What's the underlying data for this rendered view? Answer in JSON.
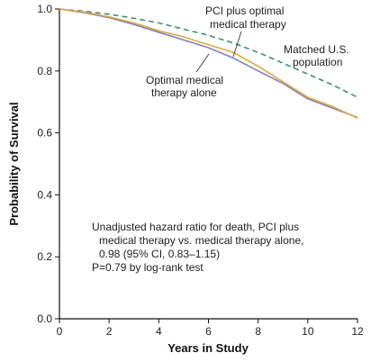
{
  "chart_data": {
    "type": "line",
    "xlabel": "Years in Study",
    "ylabel": "Probability of Survival",
    "xlim": [
      0,
      12
    ],
    "ylim": [
      0.0,
      1.0
    ],
    "x_ticks": [
      "0",
      "2",
      "4",
      "6",
      "8",
      "10",
      "12"
    ],
    "y_ticks": [
      "0.0",
      "0.2",
      "0.4",
      "0.6",
      "0.8",
      "1.0"
    ],
    "grid": false,
    "series": [
      {
        "name": "PCI plus optimal medical therapy",
        "color": "#e3a83a",
        "style": "solid",
        "x": [
          0,
          1,
          2,
          3,
          4,
          5,
          6,
          7,
          8,
          9,
          10,
          11,
          12
        ],
        "y": [
          1.0,
          0.99,
          0.975,
          0.955,
          0.93,
          0.91,
          0.885,
          0.86,
          0.815,
          0.765,
          0.715,
          0.685,
          0.648
        ]
      },
      {
        "name": "Optimal medical therapy alone",
        "color": "#7b82c4",
        "style": "solid",
        "x": [
          0,
          1,
          2,
          3,
          4,
          5,
          6,
          7,
          8,
          9,
          10,
          11,
          12
        ],
        "y": [
          1.0,
          0.988,
          0.972,
          0.95,
          0.925,
          0.9,
          0.875,
          0.842,
          0.8,
          0.76,
          0.71,
          0.68,
          0.65
        ]
      },
      {
        "name": "Matched U.S. population",
        "color": "#3f8f7d",
        "style": "dashed",
        "x": [
          0,
          1,
          2,
          3,
          4,
          5,
          6,
          7,
          8,
          9,
          10,
          11,
          12
        ],
        "y": [
          1.0,
          0.993,
          0.983,
          0.97,
          0.955,
          0.935,
          0.915,
          0.89,
          0.86,
          0.825,
          0.79,
          0.755,
          0.715
        ]
      }
    ],
    "annotations": {
      "pci_label": [
        "PCI plus optimal",
        "medical therapy"
      ],
      "omt_label": [
        "Optimal medical",
        "therapy alone"
      ],
      "us_label": [
        "Matched U.S.",
        "population"
      ],
      "stats": [
        "Unadjusted hazard ratio for death, PCI plus",
        "medical therapy vs. medical therapy alone,",
        "0.98 (95% CI, 0.83–1.15)",
        "P=0.79 by log-rank test"
      ]
    }
  }
}
